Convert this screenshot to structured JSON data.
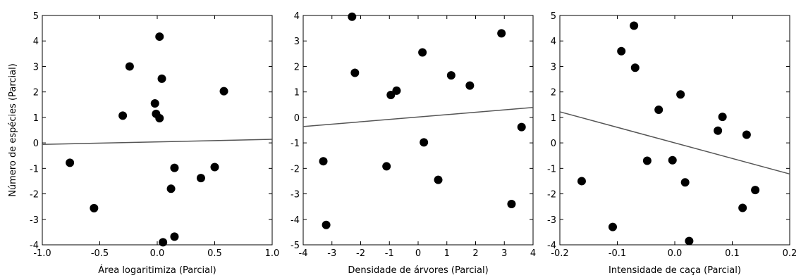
{
  "chart_data": [
    {
      "type": "scatter",
      "title": "",
      "xlabel": "Área logaritimiza (Parcial)",
      "ylabel": "Número de espécies (Parcial)",
      "xlim": [
        -1.0,
        1.0
      ],
      "ylim": [
        -4,
        5
      ],
      "x_ticks": [
        "-1.0",
        "-0.5",
        "0.0",
        "0.5",
        "1.0"
      ],
      "y_ticks": [
        "-4",
        "-3",
        "-2",
        "-1",
        "0",
        "1",
        "2",
        "3",
        "4",
        "5"
      ],
      "points": [
        {
          "x": -0.76,
          "y": -0.78
        },
        {
          "x": -0.55,
          "y": -2.56
        },
        {
          "x": -0.3,
          "y": 1.07
        },
        {
          "x": -0.24,
          "y": 3.0
        },
        {
          "x": -0.02,
          "y": 1.55
        },
        {
          "x": -0.01,
          "y": 1.14
        },
        {
          "x": 0.02,
          "y": 0.97
        },
        {
          "x": 0.02,
          "y": 4.17
        },
        {
          "x": 0.04,
          "y": 2.52
        },
        {
          "x": 0.05,
          "y": -3.9
        },
        {
          "x": 0.12,
          "y": -1.8
        },
        {
          "x": 0.15,
          "y": -0.98
        },
        {
          "x": 0.15,
          "y": -3.68
        },
        {
          "x": 0.38,
          "y": -1.38
        },
        {
          "x": 0.5,
          "y": -0.95
        },
        {
          "x": 0.58,
          "y": 2.03
        }
      ],
      "trend": {
        "x": [
          -1.0,
          1.0
        ],
        "y": [
          -0.06,
          0.14
        ]
      }
    },
    {
      "type": "scatter",
      "title": "",
      "xlabel": "Densidade de árvores (Parcial)",
      "ylabel": "",
      "xlim": [
        -4,
        4
      ],
      "ylim": [
        -5,
        4
      ],
      "x_ticks": [
        "-4",
        "-3",
        "-2",
        "-1",
        "0",
        "1",
        "2",
        "3",
        "4"
      ],
      "y_ticks": [
        "-5",
        "-4",
        "-3",
        "-2",
        "-1",
        "0",
        "1",
        "2",
        "3",
        "4"
      ],
      "points": [
        {
          "x": -3.3,
          "y": -1.72
        },
        {
          "x": -3.2,
          "y": -4.22
        },
        {
          "x": -2.3,
          "y": 3.95
        },
        {
          "x": -2.2,
          "y": 1.75
        },
        {
          "x": -1.1,
          "y": -1.92
        },
        {
          "x": -0.95,
          "y": 0.88
        },
        {
          "x": -0.75,
          "y": 1.05
        },
        {
          "x": 0.15,
          "y": 2.55
        },
        {
          "x": 0.2,
          "y": -0.98
        },
        {
          "x": 0.7,
          "y": -2.45
        },
        {
          "x": 1.15,
          "y": 1.65
        },
        {
          "x": 1.8,
          "y": 1.25
        },
        {
          "x": 2.9,
          "y": 3.3
        },
        {
          "x": 3.25,
          "y": -3.4
        },
        {
          "x": 3.6,
          "y": -0.38
        }
      ],
      "trend": {
        "x": [
          -4,
          4
        ],
        "y": [
          -0.36,
          0.39
        ]
      }
    },
    {
      "type": "scatter",
      "title": "",
      "xlabel": "Intensidade de caça (Parcial)",
      "ylabel": "",
      "xlim": [
        -0.2,
        0.2
      ],
      "ylim": [
        -4,
        5
      ],
      "x_ticks": [
        "-0.2",
        "-0.1",
        "0.0",
        "0.1",
        "0.2"
      ],
      "y_ticks": [
        "-4",
        "-3",
        "-2",
        "-1",
        "0",
        "1",
        "2",
        "3",
        "4",
        "5"
      ],
      "points": [
        {
          "x": -0.162,
          "y": -1.5
        },
        {
          "x": -0.108,
          "y": -3.3
        },
        {
          "x": -0.093,
          "y": 3.6
        },
        {
          "x": -0.071,
          "y": 4.6
        },
        {
          "x": -0.069,
          "y": 2.95
        },
        {
          "x": -0.028,
          "y": 1.3
        },
        {
          "x": -0.048,
          "y": -0.7
        },
        {
          "x": -0.004,
          "y": -0.68
        },
        {
          "x": 0.01,
          "y": 1.9
        },
        {
          "x": 0.018,
          "y": -1.55
        },
        {
          "x": 0.025,
          "y": -3.85
        },
        {
          "x": 0.075,
          "y": 0.48
        },
        {
          "x": 0.083,
          "y": 1.02
        },
        {
          "x": 0.118,
          "y": -2.55
        },
        {
          "x": 0.125,
          "y": 0.32
        },
        {
          "x": 0.14,
          "y": -1.85
        }
      ],
      "trend": {
        "x": [
          -0.2,
          0.2
        ],
        "y": [
          1.22,
          -1.22
        ]
      }
    }
  ]
}
